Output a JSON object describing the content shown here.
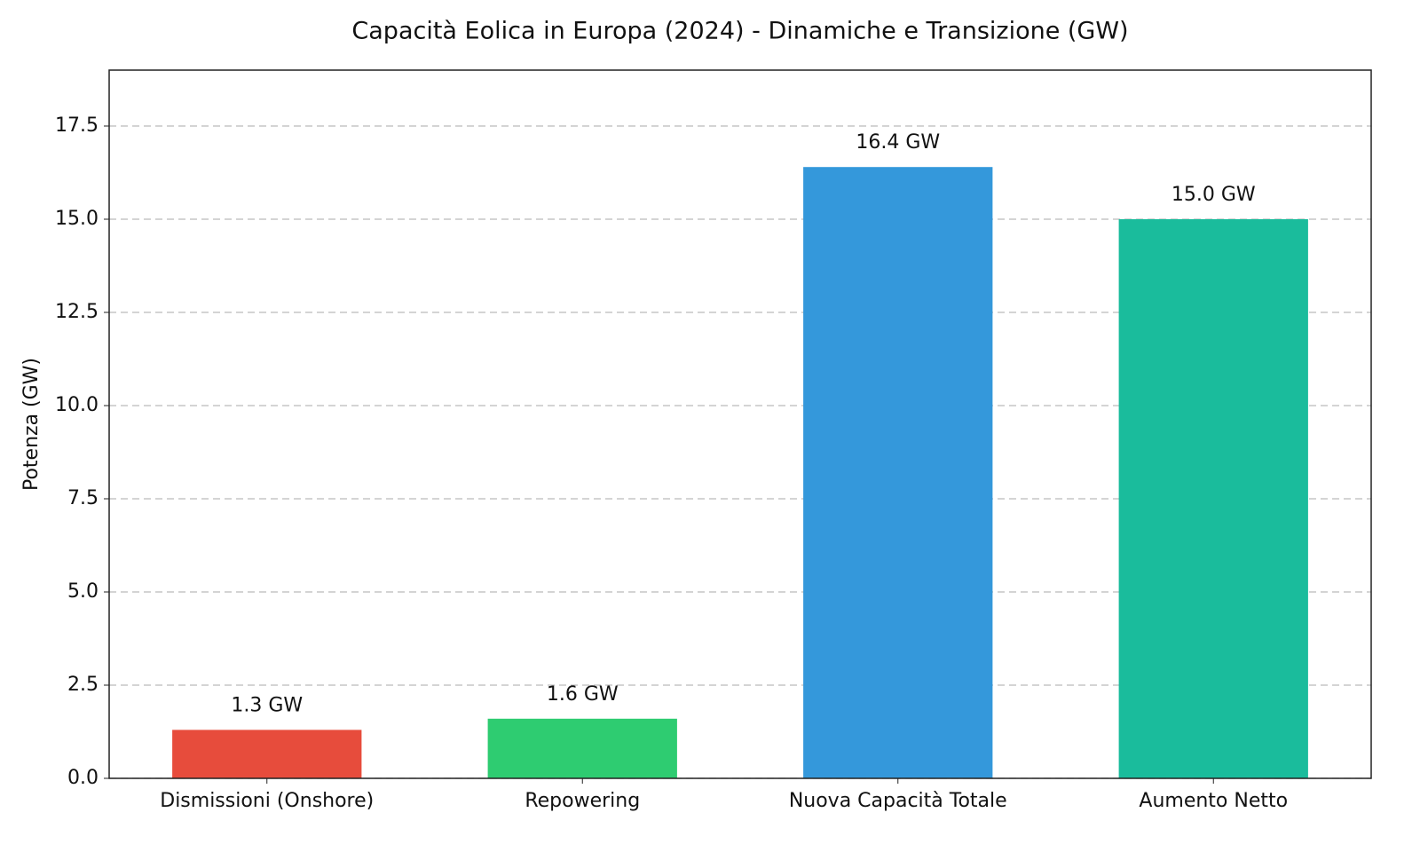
{
  "chart_data": {
    "type": "bar",
    "title": "Capacità Eolica in Europa (2024) - Dinamiche e Transizione (GW)",
    "y_label": "Potenza (GW)",
    "categories": [
      "Dismissioni (Onshore)",
      "Repowering",
      "Nuova Capacità Totale",
      "Aumento Netto"
    ],
    "values": [
      1.3,
      1.6,
      16.4,
      15.0
    ],
    "value_labels": [
      "1.3 GW",
      "1.6 GW",
      "16.4 GW",
      "15.0 GW"
    ],
    "colors": [
      "#e74c3c",
      "#2ecc71",
      "#3498db",
      "#1abc9c"
    ],
    "ylim": [
      0,
      19
    ],
    "yticks": [
      {
        "value": 0,
        "label": "0.0"
      },
      2.5,
      {
        "value": 5,
        "label": "5.0"
      },
      7.5,
      {
        "value": 10,
        "label": "10.0"
      },
      12.5,
      {
        "value": 15,
        "label": "15.0"
      },
      17.5
    ],
    "grid": true
  }
}
